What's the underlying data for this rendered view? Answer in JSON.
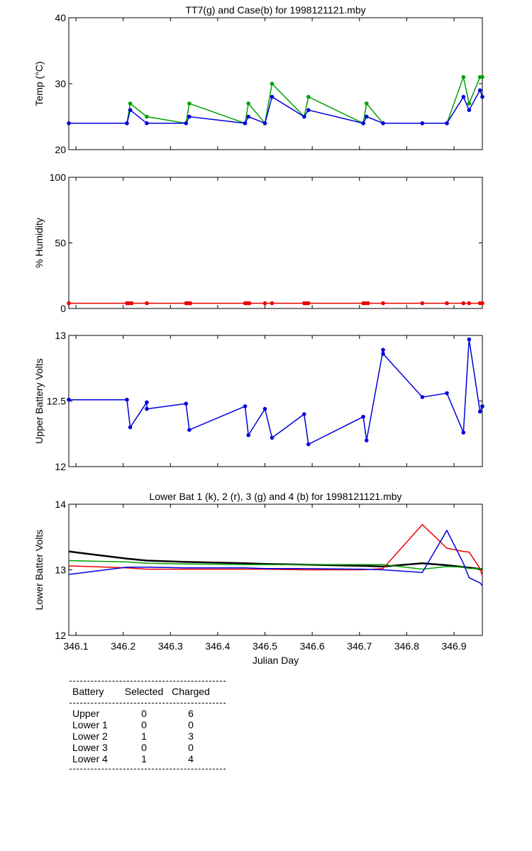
{
  "chart_data": [
    {
      "type": "line",
      "title": "TT7(g) and Case(b) for 1998121121.mby",
      "xlabel": "",
      "ylabel": "Temp (°C)",
      "xlim": [
        346.085,
        346.96
      ],
      "ylim": [
        20,
        40
      ],
      "yticks": [
        20,
        30,
        40
      ],
      "grid": false,
      "series": [
        {
          "name": "TT7",
          "color": "#00a000",
          "x": [
            346.208,
            346.215,
            346.25,
            346.333,
            346.34,
            346.458,
            346.465,
            346.5,
            346.515,
            346.583,
            346.592,
            346.708,
            346.715,
            346.75,
            346.833,
            346.885,
            346.92,
            346.932,
            346.955,
            346.96
          ],
          "y": [
            24,
            27,
            25,
            24,
            27,
            24,
            27,
            24,
            30,
            25,
            28,
            24,
            27,
            24,
            24,
            24,
            31,
            27,
            31,
            31
          ]
        },
        {
          "name": "Case",
          "color": "#0000dd",
          "x": [
            346.085,
            346.208,
            346.215,
            346.25,
            346.333,
            346.34,
            346.458,
            346.465,
            346.5,
            346.515,
            346.583,
            346.592,
            346.708,
            346.715,
            346.75,
            346.833,
            346.885,
            346.92,
            346.932,
            346.955,
            346.96
          ],
          "y": [
            24,
            24,
            26,
            24,
            24,
            25,
            24,
            25,
            24,
            28,
            25,
            26,
            24,
            25,
            24,
            24,
            24,
            28,
            26,
            29,
            28
          ]
        }
      ]
    },
    {
      "type": "line",
      "title": "",
      "xlabel": "",
      "ylabel": "% Humidity",
      "xlim": [
        346.085,
        346.96
      ],
      "ylim": [
        0,
        100
      ],
      "yticks": [
        0,
        50,
        100
      ],
      "grid": false,
      "series": [
        {
          "name": "Humidity",
          "color": "#ee0000",
          "x": [
            346.085,
            346.208,
            346.212,
            346.218,
            346.25,
            346.333,
            346.337,
            346.342,
            346.458,
            346.462,
            346.467,
            346.5,
            346.515,
            346.583,
            346.587,
            346.592,
            346.708,
            346.712,
            346.718,
            346.75,
            346.833,
            346.885,
            346.92,
            346.932,
            346.955,
            346.96
          ],
          "y": [
            4,
            4,
            4,
            4,
            4,
            4,
            4,
            4,
            4,
            4,
            4,
            4,
            4,
            4,
            4,
            4,
            4,
            4,
            4,
            4,
            4,
            4,
            4,
            4,
            4,
            4
          ]
        }
      ]
    },
    {
      "type": "line",
      "title": "",
      "xlabel": "",
      "ylabel": "Upper Battery Volts",
      "xlim": [
        346.085,
        346.96
      ],
      "ylim": [
        12,
        13
      ],
      "yticks": [
        12,
        12.5,
        13
      ],
      "yticklabels": [
        "12",
        "12.5",
        "13"
      ],
      "grid": false,
      "series": [
        {
          "name": "Upper",
          "color": "#0000dd",
          "x": [
            346.085,
            346.208,
            346.215,
            346.25,
            346.25,
            346.333,
            346.34,
            346.458,
            346.465,
            346.5,
            346.515,
            346.583,
            346.592,
            346.708,
            346.715,
            346.75,
            346.75,
            346.833,
            346.885,
            346.92,
            346.932,
            346.955,
            346.96
          ],
          "y": [
            12.51,
            12.51,
            12.3,
            12.49,
            12.44,
            12.48,
            12.28,
            12.46,
            12.24,
            12.44,
            12.22,
            12.4,
            12.17,
            12.38,
            12.2,
            12.89,
            12.86,
            12.53,
            12.56,
            12.26,
            12.97,
            12.42,
            12.46
          ]
        }
      ]
    },
    {
      "type": "line",
      "title": "Lower Bat 1 (k), 2 (r), 3 (g) and 4 (b) for 1998121121.mby",
      "xlabel": "Julian Day",
      "ylabel": "Lower Batter Volts",
      "xlim": [
        346.085,
        346.96
      ],
      "ylim": [
        12,
        14
      ],
      "yticks": [
        12,
        13,
        14
      ],
      "xticks": [
        346.1,
        346.2,
        346.3,
        346.4,
        346.5,
        346.6,
        346.7,
        346.8,
        346.9
      ],
      "xticklabels": [
        "346.1",
        "346.2",
        "346.3",
        "346.4",
        "346.5",
        "346.6",
        "346.7",
        "346.8",
        "346.9"
      ],
      "grid": false,
      "series": [
        {
          "name": "Lower Bat 1",
          "color": "#000000",
          "x": [
            346.085,
            346.208,
            346.25,
            346.333,
            346.458,
            346.5,
            346.583,
            346.708,
            346.75,
            346.833,
            346.885,
            346.96
          ],
          "y": [
            13.28,
            13.17,
            13.14,
            13.12,
            13.1,
            13.09,
            13.08,
            13.06,
            13.05,
            13.1,
            13.07,
            13.01
          ]
        },
        {
          "name": "Lower Bat 2",
          "color": "#ee0000",
          "x": [
            346.085,
            346.208,
            346.25,
            346.333,
            346.458,
            346.5,
            346.583,
            346.708,
            346.75,
            346.833,
            346.885,
            346.92,
            346.932,
            346.955,
            346.96
          ],
          "y": [
            13.06,
            13.03,
            13.01,
            13.01,
            13.01,
            13.01,
            13.0,
            13.0,
            13.02,
            13.69,
            13.33,
            13.28,
            13.27,
            13.02,
            12.91
          ]
        },
        {
          "name": "Lower Bat 3",
          "color": "#00a000",
          "x": [
            346.085,
            346.208,
            346.25,
            346.333,
            346.458,
            346.5,
            346.583,
            346.708,
            346.75,
            346.833,
            346.885,
            346.92,
            346.932,
            346.96
          ],
          "y": [
            13.14,
            13.12,
            13.1,
            13.09,
            13.08,
            13.08,
            13.08,
            13.08,
            13.08,
            13.01,
            13.05,
            13.04,
            13.02,
            13.02
          ]
        },
        {
          "name": "Lower Bat 4",
          "color": "#0000dd",
          "x": [
            346.085,
            346.208,
            346.25,
            346.333,
            346.458,
            346.5,
            346.583,
            346.708,
            346.75,
            346.833,
            346.885,
            346.92,
            346.932,
            346.955,
            346.96
          ],
          "y": [
            12.93,
            13.04,
            13.04,
            13.03,
            13.03,
            13.02,
            13.02,
            13.01,
            13.0,
            12.96,
            13.6,
            13.1,
            12.88,
            12.8,
            12.76
          ]
        }
      ]
    }
  ],
  "battery_table": {
    "headers": [
      "Battery",
      "Selected",
      "Charged"
    ],
    "rows": [
      {
        "name": "Upper",
        "selected": "0",
        "charged": "6"
      },
      {
        "name": "Lower 1",
        "selected": "0",
        "charged": "0"
      },
      {
        "name": "Lower 2",
        "selected": "1",
        "charged": "3"
      },
      {
        "name": "Lower 3",
        "selected": "0",
        "charged": "0"
      },
      {
        "name": "Lower 4",
        "selected": "1",
        "charged": "4"
      }
    ]
  }
}
